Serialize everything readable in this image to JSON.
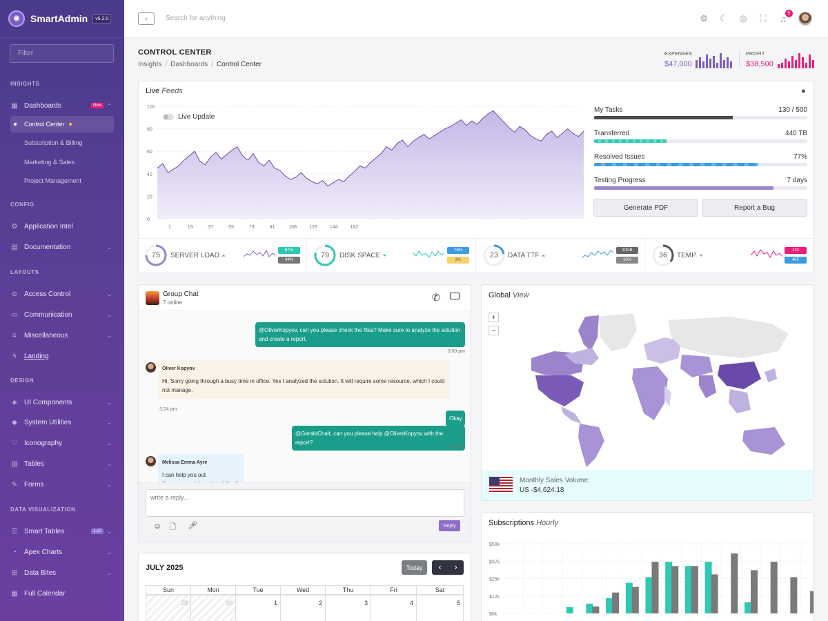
{
  "brand": {
    "name": "SmartAdmin",
    "version": "v5.2.0"
  },
  "sidebar": {
    "filter_placeholder": "Filter",
    "sections": {
      "insights": "INSIGHTS",
      "config": "CONFIG",
      "layouts": "LAYOUTS",
      "design": "DESIGN",
      "data_visualization": "DATA VISUALIZATION"
    },
    "dashboards": {
      "label": "Dashboards",
      "badge": "New"
    },
    "dashboard_children": [
      "Control Center",
      "Subscription & Billing",
      "Marketing & Sales",
      "Project Management"
    ],
    "config_items": [
      "Application Intel",
      "Documentation"
    ],
    "layout_items": [
      "Access Control",
      "Communication",
      "Miscellaneous",
      "Landing"
    ],
    "design_items": [
      "UI Components",
      "System Utilities",
      "Iconography",
      "Tables",
      "Forms"
    ],
    "dataviz_items": [
      "Smart Tables",
      "Apex Charts",
      "Data Bites",
      "Full Calendar"
    ],
    "smart_tables_badge": "1.27"
  },
  "topbar": {
    "search_placeholder": "Search for anything",
    "notification_count": "5"
  },
  "page": {
    "title": "CONTROL CENTER",
    "breadcrumb": [
      "Insights",
      "Dashboards",
      "Control Center"
    ]
  },
  "header_stats": {
    "expenses": {
      "label": "EXPENSES",
      "value": "$47,000",
      "color": "#7c5cc4"
    },
    "profit": {
      "label": "PROFIT",
      "value": "$38,500",
      "color": "#e91e7b"
    }
  },
  "live_feeds": {
    "title": "Live",
    "title_em": "Feeds",
    "toggle_label": "Live Update",
    "chart_data": {
      "type": "area",
      "ylim": [
        0,
        100
      ],
      "y_ticks": [
        "0",
        "20",
        "40",
        "60",
        "80",
        "100"
      ],
      "x_ticks": [
        "1",
        "19",
        "37",
        "55",
        "73",
        "91",
        "108",
        "126",
        "144",
        "162"
      ],
      "series": [
        {
          "values": [
            45,
            49,
            41,
            44,
            47,
            52,
            56,
            60,
            51,
            48,
            55,
            59,
            53,
            57,
            61,
            64,
            56,
            52,
            58,
            50,
            47,
            52,
            45,
            43,
            38,
            35,
            37,
            41,
            36,
            33,
            31,
            34,
            29,
            32,
            35,
            33,
            38,
            42,
            47,
            45,
            50,
            54,
            58,
            64,
            61,
            67,
            70,
            64,
            69,
            72,
            75,
            71,
            74,
            77,
            80,
            82,
            85,
            88,
            83,
            87,
            84,
            89,
            93,
            96,
            91,
            86,
            81,
            77,
            82,
            79,
            74,
            71,
            69,
            75,
            78,
            72,
            76,
            80,
            76,
            73,
            78
          ]
        }
      ],
      "color": "#9b84cc"
    },
    "progress": [
      {
        "label": "My Tasks",
        "value": "130 / 500",
        "fraction": 0.65,
        "color": "#4a4a4a"
      },
      {
        "label": "Transferred",
        "value": "440 TB",
        "fraction": 0.34,
        "color": "#2dc9b4"
      },
      {
        "label": "Resolved Issues",
        "value": "77%",
        "fraction": 0.77,
        "color": "#3d9be0"
      },
      {
        "label": "Testing Progress",
        "value": "7 days",
        "fraction": 0.84,
        "color": "#9b84cc"
      }
    ],
    "buttons": {
      "generate_pdf": "Generate PDF",
      "report_bug": "Report a Bug"
    },
    "gauges": [
      {
        "value": "75",
        "label": "SERVER LOAD",
        "fraction": 0.75,
        "color": "#9b84cc",
        "trend": "up",
        "badges": [
          {
            "text": "87%",
            "color": "#2dc9b4"
          },
          {
            "text": "44%",
            "color": "#777"
          }
        ]
      },
      {
        "value": "79",
        "label": "DISK SPACE",
        "fraction": 0.79,
        "color": "#2dc9b4",
        "trend": "down",
        "badges": [
          {
            "text": "76%",
            "color": "#3d9be0"
          },
          {
            "text": "3%",
            "color": "#f5c542"
          }
        ]
      },
      {
        "value": "23",
        "label": "DATA TTF",
        "fraction": 0.23,
        "color": "#3d9be0",
        "trend": "up",
        "badges": [
          {
            "text": "10GB",
            "color": "#666"
          },
          {
            "text": "10%",
            "color": "#888"
          }
        ]
      },
      {
        "value": "36",
        "label": "TEMP.",
        "fraction": 0.36,
        "color": "#555",
        "trend": "down",
        "badges": [
          {
            "text": "124",
            "color": "#e91e7b"
          },
          {
            "text": "40F",
            "color": "#3d9be0"
          }
        ]
      }
    ]
  },
  "chat": {
    "title": "Group Chat",
    "subtitle": "7 online",
    "messages": [
      {
        "text": "@OliverKopyov, can you please check the files? Make sure to analyze the solution and create a report.",
        "time": "3:00 pm"
      },
      {
        "author": "Oliver Kopyov",
        "text": "Hi, Sorry going through a busy time in office. Yes I analyzed the solution. It will require some resource, which I could not manage.",
        "time": "3:24 pm"
      },
      {
        "text": "Okay"
      },
      {
        "text": "@GeraldChait, can you please help @OliverKopyov with the report?",
        "time": "3:26 pm"
      },
      {
        "author": "Melissa Emma Ayre",
        "text": "I can help you out",
        "text2": "Can you send the related files?"
      }
    ],
    "reply_placeholder": "write a reply...",
    "reply_button": "Reply"
  },
  "global_view": {
    "title": "Global",
    "title_em": "View",
    "zoom_in": "+",
    "zoom_out": "−",
    "sales_label": "Monthly Sales Volume:",
    "sales_value": "US -$4,624.18"
  },
  "calendar": {
    "title": "JULY 2025",
    "today": "Today",
    "prev": "‹",
    "next": "›",
    "weekdays": [
      "Sun",
      "Mon",
      "Tue",
      "Wed",
      "Thu",
      "Fri",
      "Sat"
    ],
    "days": [
      "29",
      "30",
      "1",
      "2",
      "3",
      "4",
      "5"
    ]
  },
  "subscriptions": {
    "title": "Subscriptions",
    "title_em": "Hourly",
    "chart_data": {
      "type": "bar",
      "ylim": [
        0,
        50
      ],
      "y_ticks": [
        "$0k",
        "$12k",
        "$25k",
        "$37k",
        "$50k"
      ],
      "series": [
        {
          "color": "#2dc9b4",
          "values": [
            0,
            4.5,
            7,
            11,
            22,
            26,
            37,
            34,
            37,
            0,
            8,
            0,
            0,
            0,
            0
          ]
        },
        {
          "color": "#7a7a7a",
          "values": [
            0,
            0,
            5,
            15,
            19,
            37,
            34,
            34,
            28,
            43,
            31,
            37,
            26,
            16,
            0
          ]
        }
      ]
    }
  }
}
